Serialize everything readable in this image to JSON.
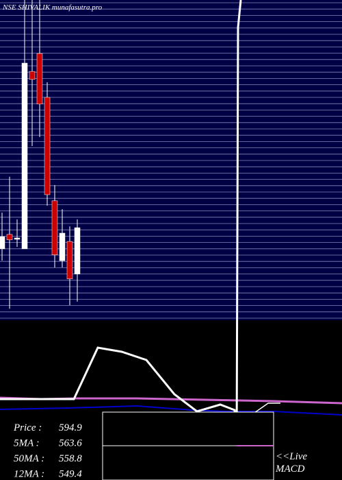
{
  "chart_data": {
    "type": "candlestick",
    "title": "NSE SHIVALIK munafasutra.pro",
    "ylim": [
      566,
      666
    ],
    "up_color": "#ffffff",
    "down_color": "#cc0000",
    "open": [
      588.3,
      592.8,
      591.3,
      588.3,
      643.7,
      649.3,
      635.6,
      603.3,
      584.6,
      590.6,
      580.4
    ],
    "high": [
      599.6,
      610.8,
      597.5,
      666,
      666,
      666,
      640.3,
      608.2,
      600.7,
      595.3,
      597.5
    ],
    "low": [
      584.6,
      569.6,
      588.9,
      588.3,
      620.4,
      623.2,
      601.8,
      582.5,
      582.5,
      570.7,
      571.8
    ],
    "close": [
      592.1,
      591.1,
      591.7,
      646.3,
      641.2,
      633.5,
      605.2,
      586.4,
      593.2,
      578.9,
      594.9
    ],
    "info": [
      {
        "label": "Price :",
        "value": 594.9
      },
      {
        "label": "5MA :",
        "value": 563.6
      },
      {
        "label": "50MA :",
        "value": 558.8
      },
      {
        "label": "12MA :",
        "value": 549.4
      }
    ],
    "live": "<<Live",
    "indicator": "MACD"
  }
}
